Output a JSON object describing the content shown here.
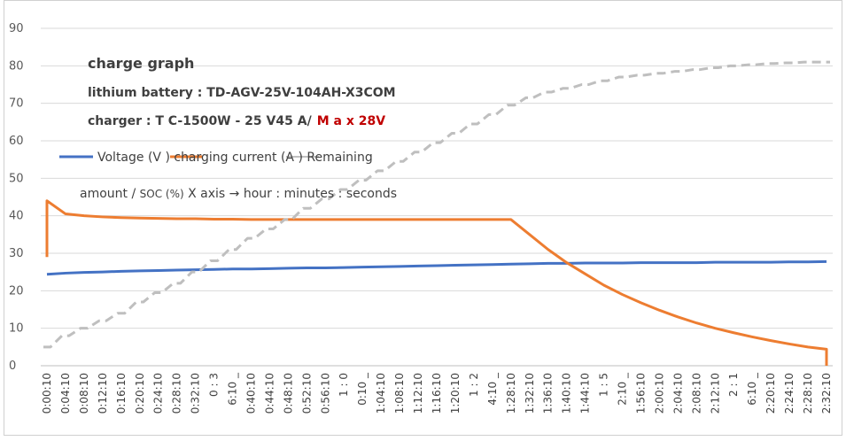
{
  "chart_data": {
    "type": "line",
    "title": "charge graph",
    "subtitle_battery": "lithium battery : TD-AGV-25V-104AH-X3COM",
    "subtitle_charger": "charger : T C-1500W - 25 V45 A/",
    "subtitle_max": "M a x 28V",
    "legend_line1": "Voltage (V ) charging current (A ) Remaining",
    "legend_line2_a": "amount / ",
    "legend_line2_b": "SOC (%)",
    "legend_line2_c": " X axis  →  hour : minutes : seconds",
    "ylim": [
      0,
      90
    ],
    "yticks": [
      "0",
      "10",
      "20",
      "30",
      "40",
      "50",
      "60",
      "70",
      "80",
      "90"
    ],
    "xtick_labels": [
      "0:00:10",
      "0:04:10",
      "0:08:10",
      "0:12:10",
      "0:16:10",
      "0:20:10",
      "0:24:10",
      "0:28:10",
      "0:32:10",
      "0 : 3",
      "6:10 _",
      "0:40:10",
      "0:44:10",
      "0:48:10",
      "0:52:10",
      "0:56:10",
      "1 : 0",
      "0:10 _",
      "1:04:10",
      "1:08:10",
      "1:12:10",
      "1:16:10",
      "1:20:10",
      "1 : 2",
      "4:10 _",
      "1:28:10",
      "1:32:10",
      "1:36:10",
      "1:40:10",
      "1:44:10",
      "1 : 5",
      "2:10 _",
      "1:56:10",
      "2:00:10",
      "2:04:10",
      "2:08:10",
      "2:12:10",
      "2 : 1",
      "6:10 _",
      "2:20:10",
      "2:24:10",
      "2:28:10",
      "2:32:10"
    ],
    "series": [
      {
        "name": "Voltage (V )",
        "color": "#4472c4",
        "style": "solid",
        "values": [
          24.4,
          24.7,
          24.9,
          25.0,
          25.2,
          25.3,
          25.4,
          25.5,
          25.6,
          25.7,
          25.8,
          25.8,
          25.9,
          26.0,
          26.1,
          26.1,
          26.2,
          26.3,
          26.4,
          26.5,
          26.6,
          26.7,
          26.8,
          26.9,
          27.0,
          27.1,
          27.2,
          27.3,
          27.3,
          27.4,
          27.4,
          27.4,
          27.5,
          27.5,
          27.5,
          27.5,
          27.6,
          27.6,
          27.6,
          27.6,
          27.7,
          27.7,
          27.8
        ]
      },
      {
        "name": "charging current (A )",
        "color": "#ed7d31",
        "style": "solid",
        "values": [
          44.0,
          40.5,
          40.0,
          39.7,
          39.5,
          39.4,
          39.3,
          39.2,
          39.2,
          39.1,
          39.1,
          39.0,
          39.0,
          39.0,
          39.0,
          39.0,
          39.0,
          39.0,
          39.0,
          39.0,
          39.0,
          39.0,
          39.0,
          39.0,
          39.0,
          39.0,
          35.0,
          31.0,
          27.5,
          24.5,
          21.5,
          19.0,
          16.8,
          14.8,
          13.0,
          11.4,
          10.0,
          8.8,
          7.7,
          6.7,
          5.8,
          5.0,
          4.4
        ]
      },
      {
        "name": "Remaining amount / SOC (%)",
        "color": "#bfbfbf",
        "style": "dashed",
        "values": [
          5.0,
          8.0,
          10.0,
          12.0,
          14.0,
          17.0,
          19.5,
          22.0,
          25.0,
          28.0,
          31.0,
          34.0,
          36.5,
          39.0,
          42.0,
          44.5,
          47.0,
          49.5,
          52.0,
          54.5,
          57.0,
          59.5,
          62.0,
          64.5,
          67.0,
          69.5,
          71.5,
          73.0,
          74.0,
          75.0,
          76.0,
          77.0,
          77.5,
          78.0,
          78.5,
          79.0,
          79.5,
          80.0,
          80.3,
          80.6,
          80.8,
          81.0,
          81.0
        ]
      }
    ]
  }
}
